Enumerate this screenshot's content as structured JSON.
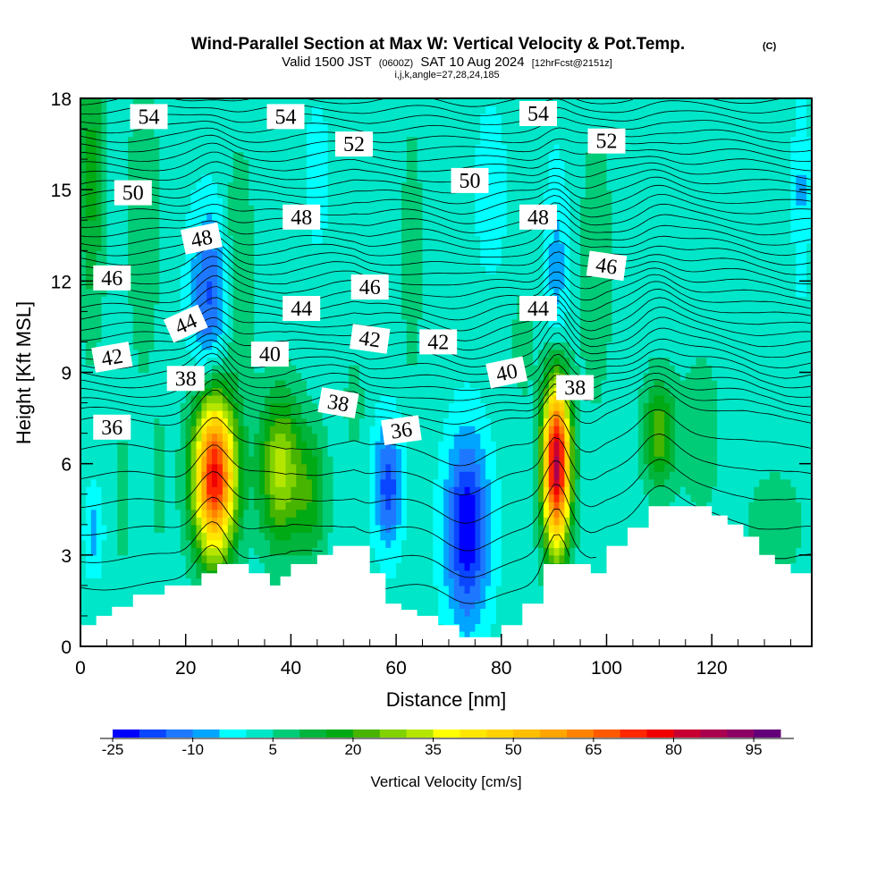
{
  "chart_data": {
    "type": "heatmap",
    "title": "Wind-Parallel Section at Max W: Vertical Velocity & Pot.Temp.",
    "title_mark": "(C)",
    "subtitle_main": "Valid 1500 JST",
    "subtitle_utc": "(0600Z)",
    "subtitle_date": "SAT 10 Aug 2024",
    "subtitle_fcst": "[12hrFcst@2151z]",
    "indices": "i,j,k,angle=27,28,24,185",
    "xlabel": "Distance [nm]",
    "ylabel": "Height [Kft MSL]",
    "xlim": [
      0,
      139
    ],
    "ylim": [
      0,
      18
    ],
    "x_ticks": [
      0,
      20,
      40,
      60,
      80,
      100,
      120
    ],
    "x_tick_labels": [
      "0",
      "20",
      "40",
      "60",
      "80",
      "100",
      "120"
    ],
    "y_ticks": [
      0,
      3,
      6,
      9,
      12,
      15,
      18
    ],
    "y_tick_labels": [
      "0",
      "3",
      "6",
      "9",
      "12",
      "15",
      "18"
    ],
    "shading": {
      "field": "Vertical Velocity",
      "label": "Vertical Velocity [cm/s]",
      "levels": [
        -25,
        -20,
        -15,
        -10,
        -5,
        0,
        5,
        10,
        15,
        20,
        25,
        30,
        35,
        40,
        45,
        50,
        55,
        60,
        65,
        70,
        75,
        80,
        85,
        90,
        95,
        100
      ],
      "colors": [
        "#0000ff",
        "#0a46ff",
        "#1e78ff",
        "#00a5ff",
        "#00ffff",
        "#00e6c8",
        "#00cc78",
        "#00b43c",
        "#00aa14",
        "#46b400",
        "#82d200",
        "#b4e600",
        "#ffff00",
        "#ffe600",
        "#ffd200",
        "#ffbe00",
        "#ffa500",
        "#ff8200",
        "#ff5a00",
        "#ff2800",
        "#f00000",
        "#c80032",
        "#aa0050",
        "#8c0064",
        "#640078"
      ],
      "tick_labels": [
        "-25",
        "-10",
        "5",
        "20",
        "35",
        "50",
        "65",
        "80",
        "95"
      ],
      "features": [
        {
          "x": 25.5,
          "z": 5.6,
          "rx": 4.0,
          "rz": 2.6,
          "w": 75
        },
        {
          "x": 90.5,
          "z": 6.0,
          "rx": 2.6,
          "rz": 2.8,
          "w": 85
        },
        {
          "x": 38.0,
          "z": 5.8,
          "rx": 4.0,
          "rz": 2.5,
          "w": 30
        },
        {
          "x": 44.0,
          "z": 5.0,
          "rx": 3.0,
          "rz": 2.2,
          "w": 15
        },
        {
          "x": 110.0,
          "z": 7.0,
          "rx": 3.0,
          "rz": 1.8,
          "w": 22
        },
        {
          "x": 73.5,
          "z": 3.8,
          "rx": 4.0,
          "rz": 3.0,
          "w": -27
        },
        {
          "x": 58.5,
          "z": 5.3,
          "rx": 2.6,
          "rz": 2.0,
          "w": -20
        },
        {
          "x": 2.5,
          "z": 3.8,
          "rx": 1.6,
          "rz": 1.3,
          "w": -10
        },
        {
          "x": 24.5,
          "z": 11.5,
          "rx": 3.5,
          "rz": 2.8,
          "w": -18
        },
        {
          "x": 90.5,
          "z": 12.0,
          "rx": 2.2,
          "rz": 3.5,
          "w": -10
        },
        {
          "x": 2.0,
          "z": 15.5,
          "rx": 2.5,
          "rz": 5.0,
          "w": 15
        },
        {
          "x": 12.0,
          "z": 14.0,
          "rx": 3.0,
          "rz": 5.0,
          "w": 8
        },
        {
          "x": 30.0,
          "z": 12.5,
          "rx": 3.0,
          "rz": 4.0,
          "w": 8
        },
        {
          "x": 63.0,
          "z": 13.0,
          "rx": 2.5,
          "rz": 5.5,
          "w": 5
        },
        {
          "x": 98.0,
          "z": 12.5,
          "rx": 3.0,
          "rz": 4.5,
          "w": 8
        },
        {
          "x": 118.0,
          "z": 7.0,
          "rx": 4.0,
          "rz": 3.0,
          "w": 6
        },
        {
          "x": 132.0,
          "z": 4.0,
          "rx": 6.0,
          "rz": 2.0,
          "w": 6
        },
        {
          "x": 137.0,
          "z": 15.0,
          "rx": 1.5,
          "rz": 3.0,
          "w": -8
        },
        {
          "x": 8.0,
          "z": 4.8,
          "rx": 1.2,
          "rz": 2.0,
          "w": 8
        },
        {
          "x": 15.0,
          "z": 5.5,
          "rx": 1.2,
          "rz": 2.2,
          "w": 6
        },
        {
          "x": 84.0,
          "z": 10.0,
          "rx": 2.0,
          "rz": 2.0,
          "w": 6
        },
        {
          "x": 78.0,
          "z": 15.0,
          "rx": 3.0,
          "rz": 3.0,
          "w": -5
        },
        {
          "x": 45.0,
          "z": 15.5,
          "rx": 2.5,
          "rz": 2.5,
          "w": -5
        },
        {
          "x": 52.0,
          "z": 8.0,
          "rx": 2.0,
          "rz": 1.5,
          "w": 6
        }
      ]
    },
    "terrain_kft": [
      [
        0,
        0.7
      ],
      [
        3,
        1.0
      ],
      [
        6,
        1.3
      ],
      [
        10,
        1.7
      ],
      [
        16,
        2.0
      ],
      [
        23,
        2.4
      ],
      [
        26,
        2.7
      ],
      [
        32,
        2.4
      ],
      [
        36,
        2.0
      ],
      [
        38,
        2.3
      ],
      [
        40,
        2.7
      ],
      [
        45,
        3.0
      ],
      [
        48,
        3.3
      ],
      [
        52,
        3.3
      ],
      [
        55,
        2.4
      ],
      [
        58,
        1.4
      ],
      [
        61,
        1.2
      ],
      [
        64,
        1.0
      ],
      [
        68,
        0.7
      ],
      [
        72,
        0.3
      ],
      [
        77,
        0.3
      ],
      [
        80,
        0.7
      ],
      [
        84,
        1.4
      ],
      [
        88,
        2.7
      ],
      [
        92,
        2.7
      ],
      [
        97,
        2.4
      ],
      [
        100,
        3.3
      ],
      [
        104,
        3.9
      ],
      [
        108,
        4.6
      ],
      [
        115,
        4.6
      ],
      [
        120,
        4.3
      ],
      [
        123,
        4.0
      ],
      [
        126,
        3.6
      ],
      [
        129,
        3.0
      ],
      [
        132,
        2.7
      ],
      [
        135,
        2.4
      ],
      [
        139,
        2.4
      ]
    ],
    "pot_temp_labels": [
      {
        "text": "54",
        "x": 13,
        "z": 17.4,
        "angle": 0
      },
      {
        "text": "54",
        "x": 39,
        "z": 17.4,
        "angle": 0
      },
      {
        "text": "52",
        "x": 52,
        "z": 16.5,
        "angle": 0
      },
      {
        "text": "54",
        "x": 87,
        "z": 17.5,
        "angle": 0
      },
      {
        "text": "52",
        "x": 100,
        "z": 16.6,
        "angle": 0
      },
      {
        "text": "50",
        "x": 10,
        "z": 14.9,
        "angle": 0
      },
      {
        "text": "50",
        "x": 74,
        "z": 15.3,
        "angle": 0
      },
      {
        "text": "48",
        "x": 23,
        "z": 13.4,
        "angle": -12
      },
      {
        "text": "48",
        "x": 42,
        "z": 14.1,
        "angle": 0
      },
      {
        "text": "48",
        "x": 87,
        "z": 14.1,
        "angle": 0
      },
      {
        "text": "46",
        "x": 6,
        "z": 12.1,
        "angle": 0
      },
      {
        "text": "46",
        "x": 55,
        "z": 11.8,
        "angle": 0
      },
      {
        "text": "46",
        "x": 100,
        "z": 12.5,
        "angle": 8
      },
      {
        "text": "44",
        "x": 20,
        "z": 10.6,
        "angle": -24
      },
      {
        "text": "44",
        "x": 42,
        "z": 11.1,
        "angle": 0
      },
      {
        "text": "44",
        "x": 87,
        "z": 11.1,
        "angle": 0
      },
      {
        "text": "42",
        "x": 6,
        "z": 9.5,
        "angle": -10
      },
      {
        "text": "42",
        "x": 55,
        "z": 10.1,
        "angle": 8
      },
      {
        "text": "42",
        "x": 68,
        "z": 10.0,
        "angle": 0
      },
      {
        "text": "40",
        "x": 36,
        "z": 9.6,
        "angle": 0
      },
      {
        "text": "40",
        "x": 81,
        "z": 9.0,
        "angle": -12
      },
      {
        "text": "38",
        "x": 20,
        "z": 8.8,
        "angle": 0
      },
      {
        "text": "38",
        "x": 49,
        "z": 8.0,
        "angle": 10
      },
      {
        "text": "38",
        "x": 94,
        "z": 8.5,
        "angle": 0
      },
      {
        "text": "36",
        "x": 6,
        "z": 7.2,
        "angle": 0
      },
      {
        "text": "36",
        "x": 61,
        "z": 7.1,
        "angle": -8
      }
    ]
  }
}
